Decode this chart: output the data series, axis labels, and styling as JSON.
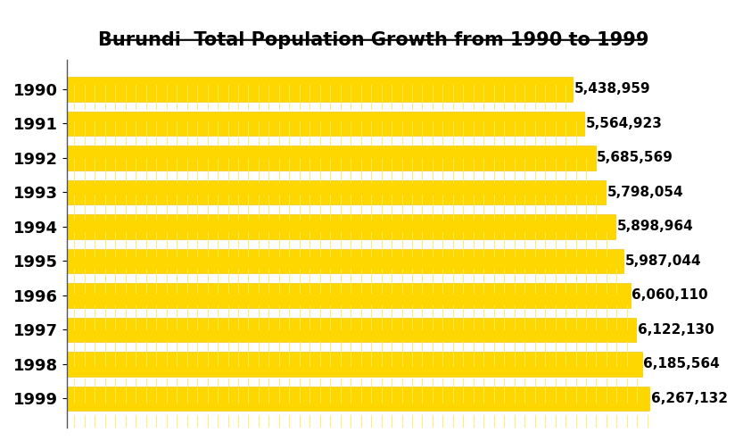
{
  "title": "Burundi  Total Population Growth from 1990 to 1999",
  "years": [
    "1990",
    "1991",
    "1992",
    "1993",
    "1994",
    "1995",
    "1996",
    "1997",
    "1998",
    "1999"
  ],
  "values": [
    5438959,
    5564923,
    5685569,
    5798054,
    5898964,
    5987044,
    6060110,
    6122130,
    6185564,
    6267132
  ],
  "labels": [
    "5,438,959",
    "5,564,923",
    "5,685,569",
    "5,798,054",
    "5,898,964",
    "5,987,044",
    "6,060,110",
    "6,122,130",
    "6,185,564",
    "6,267,132"
  ],
  "bar_color": "#FFD700",
  "bar_edge_color": "#E8C000",
  "background_color": "#FFFFFF",
  "title_fontsize": 15,
  "label_fontsize": 11,
  "tick_fontsize": 13,
  "xlim_min": 4800000,
  "xlim_max": 6600000,
  "bar_height": 0.72
}
